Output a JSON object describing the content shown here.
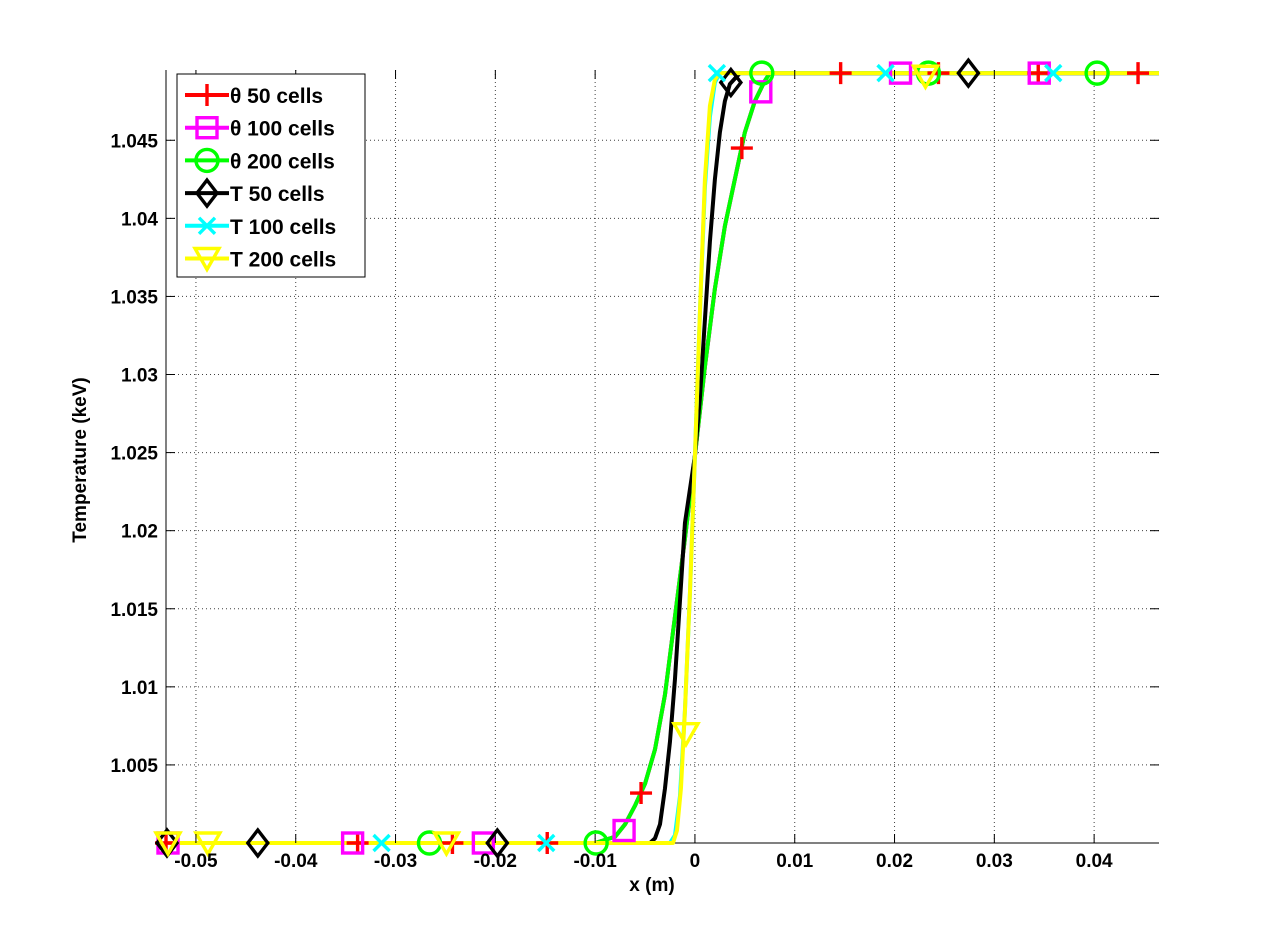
{
  "chart_data": {
    "type": "line",
    "xlabel": "x (m)",
    "ylabel": "Temperature (keV)",
    "xlim": [
      -0.053,
      0.0465
    ],
    "ylim": [
      1.0,
      1.0495
    ],
    "grid": true,
    "legend_position": "top-left",
    "x_ticks": [
      -0.05,
      -0.04,
      -0.03,
      -0.02,
      -0.01,
      0,
      0.01,
      0.02,
      0.03,
      0.04
    ],
    "x_tick_labels": [
      "-0.05",
      "-0.04",
      "-0.03",
      "-0.02",
      "-0.01",
      "0",
      "0.01",
      "0.02",
      "0.03",
      "0.04"
    ],
    "y_ticks": [
      1.005,
      1.01,
      1.015,
      1.02,
      1.025,
      1.03,
      1.035,
      1.04,
      1.045
    ],
    "y_tick_labels": [
      "1.005",
      "1.01",
      "1.015",
      "1.02",
      "1.025",
      "1.03",
      "1.035",
      "1.04",
      "1.045"
    ],
    "series": [
      {
        "name": "θ 50 cells",
        "color": "#ff0000",
        "marker": "plus",
        "line": [
          [
            -0.053,
            1.0
          ],
          [
            -0.01,
            1.0
          ],
          [
            -0.008,
            1.0004
          ],
          [
            -0.007,
            1.0012
          ],
          [
            -0.006,
            1.0024
          ],
          [
            -0.005,
            1.0038
          ],
          [
            -0.004,
            1.006
          ],
          [
            -0.003,
            1.0095
          ],
          [
            -0.002,
            1.0145
          ],
          [
            -0.001,
            1.0195
          ],
          [
            0,
            1.0248
          ],
          [
            0.001,
            1.0305
          ],
          [
            0.002,
            1.0355
          ],
          [
            0.003,
            1.0395
          ],
          [
            0.004,
            1.0425
          ],
          [
            0.005,
            1.0455
          ],
          [
            0.006,
            1.0475
          ],
          [
            0.007,
            1.0488
          ],
          [
            0.0075,
            1.0493
          ],
          [
            0.0465,
            1.0493
          ]
        ],
        "marker_points": [
          [
            -0.053,
            1.0
          ],
          [
            -0.0338,
            1.0
          ],
          [
            -0.0243,
            1.0
          ],
          [
            -0.0148,
            1.0
          ],
          [
            -0.0054,
            1.0032
          ],
          [
            0.0047,
            1.0445
          ],
          [
            0.0146,
            1.0493
          ],
          [
            0.0244,
            1.0493
          ],
          [
            0.0344,
            1.0493
          ],
          [
            0.0444,
            1.0493
          ]
        ]
      },
      {
        "name": "θ 100 cells",
        "color": "#ff00ff",
        "marker": "square",
        "line": [
          [
            -0.053,
            1.0
          ],
          [
            -0.01,
            1.0
          ],
          [
            -0.008,
            1.0004
          ],
          [
            -0.007,
            1.0012
          ],
          [
            -0.006,
            1.0024
          ],
          [
            -0.005,
            1.0038
          ],
          [
            -0.004,
            1.006
          ],
          [
            -0.003,
            1.0095
          ],
          [
            -0.002,
            1.0145
          ],
          [
            -0.001,
            1.0195
          ],
          [
            0,
            1.0248
          ],
          [
            0.001,
            1.0305
          ],
          [
            0.002,
            1.0355
          ],
          [
            0.003,
            1.0395
          ],
          [
            0.004,
            1.0425
          ],
          [
            0.005,
            1.0455
          ],
          [
            0.006,
            1.0475
          ],
          [
            0.007,
            1.0488
          ],
          [
            0.0075,
            1.0493
          ],
          [
            0.0465,
            1.0493
          ]
        ],
        "marker_points": [
          [
            -0.0528,
            1.0
          ],
          [
            -0.0343,
            1.0
          ],
          [
            -0.0212,
            1.0
          ],
          [
            -0.0071,
            1.0008
          ],
          [
            0.0066,
            1.0481
          ],
          [
            0.0206,
            1.0493
          ],
          [
            0.0345,
            1.0493
          ]
        ]
      },
      {
        "name": "θ 200 cells",
        "color": "#00ff00",
        "marker": "circle",
        "line": [
          [
            -0.053,
            1.0
          ],
          [
            -0.01,
            1.0
          ],
          [
            -0.008,
            1.0004
          ],
          [
            -0.007,
            1.0012
          ],
          [
            -0.006,
            1.0024
          ],
          [
            -0.005,
            1.0038
          ],
          [
            -0.004,
            1.006
          ],
          [
            -0.003,
            1.0095
          ],
          [
            -0.002,
            1.0145
          ],
          [
            -0.001,
            1.0195
          ],
          [
            0,
            1.0248
          ],
          [
            0.001,
            1.0305
          ],
          [
            0.002,
            1.0355
          ],
          [
            0.003,
            1.0395
          ],
          [
            0.004,
            1.0425
          ],
          [
            0.005,
            1.0455
          ],
          [
            0.006,
            1.0475
          ],
          [
            0.007,
            1.0488
          ],
          [
            0.0075,
            1.0493
          ],
          [
            0.0465,
            1.0493
          ]
        ],
        "marker_points": [
          [
            -0.0266,
            1.0
          ],
          [
            -0.0099,
            1.0
          ],
          [
            0.0067,
            1.0493
          ],
          [
            0.0234,
            1.0493
          ],
          [
            0.0403,
            1.0493
          ]
        ]
      },
      {
        "name": "T 50 cells",
        "color": "#000000",
        "marker": "diamond",
        "line": [
          [
            -0.053,
            1.0
          ],
          [
            -0.0045,
            1.0
          ],
          [
            -0.004,
            1.0003
          ],
          [
            -0.0035,
            1.0012
          ],
          [
            -0.003,
            1.0035
          ],
          [
            -0.0025,
            1.0065
          ],
          [
            -0.002,
            1.0105
          ],
          [
            -0.0015,
            1.0155
          ],
          [
            -0.001,
            1.0205
          ],
          [
            0,
            1.0248
          ],
          [
            0.0005,
            1.0285
          ],
          [
            0.001,
            1.0335
          ],
          [
            0.0015,
            1.0385
          ],
          [
            0.002,
            1.0425
          ],
          [
            0.0025,
            1.0455
          ],
          [
            0.003,
            1.0475
          ],
          [
            0.0035,
            1.0486
          ],
          [
            0.0045,
            1.0493
          ],
          [
            0.0465,
            1.0493
          ]
        ],
        "marker_points": [
          [
            -0.0529,
            1.0
          ],
          [
            -0.0438,
            1.0
          ],
          [
            -0.0198,
            1.0
          ],
          [
            0.0036,
            1.0487
          ],
          [
            0.0274,
            1.0493
          ]
        ]
      },
      {
        "name": "T 100 cells",
        "color": "#00ffff",
        "marker": "x",
        "line": [
          [
            -0.053,
            1.0
          ],
          [
            -0.0025,
            1.0
          ],
          [
            -0.002,
            1.0005
          ],
          [
            -0.0015,
            1.003
          ],
          [
            -0.001,
            1.0085
          ],
          [
            -0.0005,
            1.016
          ],
          [
            0,
            1.0248
          ],
          [
            0.0005,
            1.034
          ],
          [
            0.001,
            1.042
          ],
          [
            0.0015,
            1.0465
          ],
          [
            0.002,
            1.0487
          ],
          [
            0.0025,
            1.0493
          ],
          [
            0.0465,
            1.0493
          ]
        ],
        "marker_points": [
          [
            -0.0314,
            1.0
          ],
          [
            -0.0149,
            1.0
          ],
          [
            0.0022,
            1.0493
          ],
          [
            0.0191,
            1.0493
          ],
          [
            0.0359,
            1.0493
          ]
        ]
      },
      {
        "name": "T 200 cells",
        "color": "#ffff00",
        "marker": "triangle-down",
        "line": [
          [
            -0.053,
            1.0
          ],
          [
            -0.0022,
            1.0
          ],
          [
            -0.0018,
            1.0008
          ],
          [
            -0.0014,
            1.0035
          ],
          [
            -0.001,
            1.0085
          ],
          [
            -0.0005,
            1.016
          ],
          [
            0,
            1.0248
          ],
          [
            0.0005,
            1.034
          ],
          [
            0.001,
            1.0425
          ],
          [
            0.0015,
            1.0472
          ],
          [
            0.002,
            1.0489
          ],
          [
            0.0025,
            1.0493
          ],
          [
            0.0465,
            1.0493
          ]
        ],
        "marker_points": [
          [
            -0.0528,
            1.0
          ],
          [
            -0.0488,
            1.0
          ],
          [
            -0.0249,
            1.0
          ],
          [
            -0.0009,
            1.007
          ],
          [
            0.0231,
            1.0491
          ]
        ]
      }
    ]
  }
}
